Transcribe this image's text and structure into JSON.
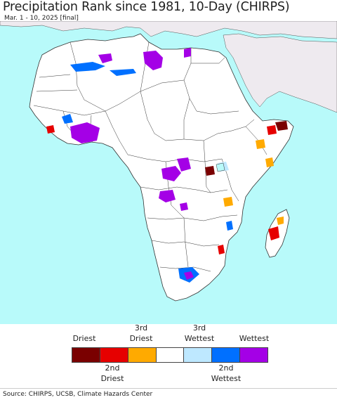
{
  "header": {
    "title": "Precipitation Rank since 1981, 10-Day (CHIRPS)",
    "subtitle": "Mar. 1 - 10, 2025 [final]"
  },
  "legend": {
    "top_labels": [
      {
        "line1": "Driest",
        "line2": ""
      },
      {
        "line1": "3rd",
        "line2": "Driest"
      },
      {
        "line1": "3rd",
        "line2": "Wettest"
      },
      {
        "line1": "Wettest",
        "line2": ""
      }
    ],
    "bottom_labels": [
      {
        "line1": "2nd",
        "line2": "Driest"
      },
      {
        "line1": "2nd",
        "line2": "Wettest"
      }
    ],
    "colors": [
      "#7a0000",
      "#e60000",
      "#ffaa00",
      "#ffffff",
      "#bee8ff",
      "#0070ff",
      "#a400e6"
    ]
  },
  "colors": {
    "ocean": "#b8fafa",
    "land": "#ffffff",
    "outside_region": "#eeeaef",
    "borders": "#333333"
  },
  "source": "Source: CHIRPS, UCSB, Climate Hazards Center"
}
